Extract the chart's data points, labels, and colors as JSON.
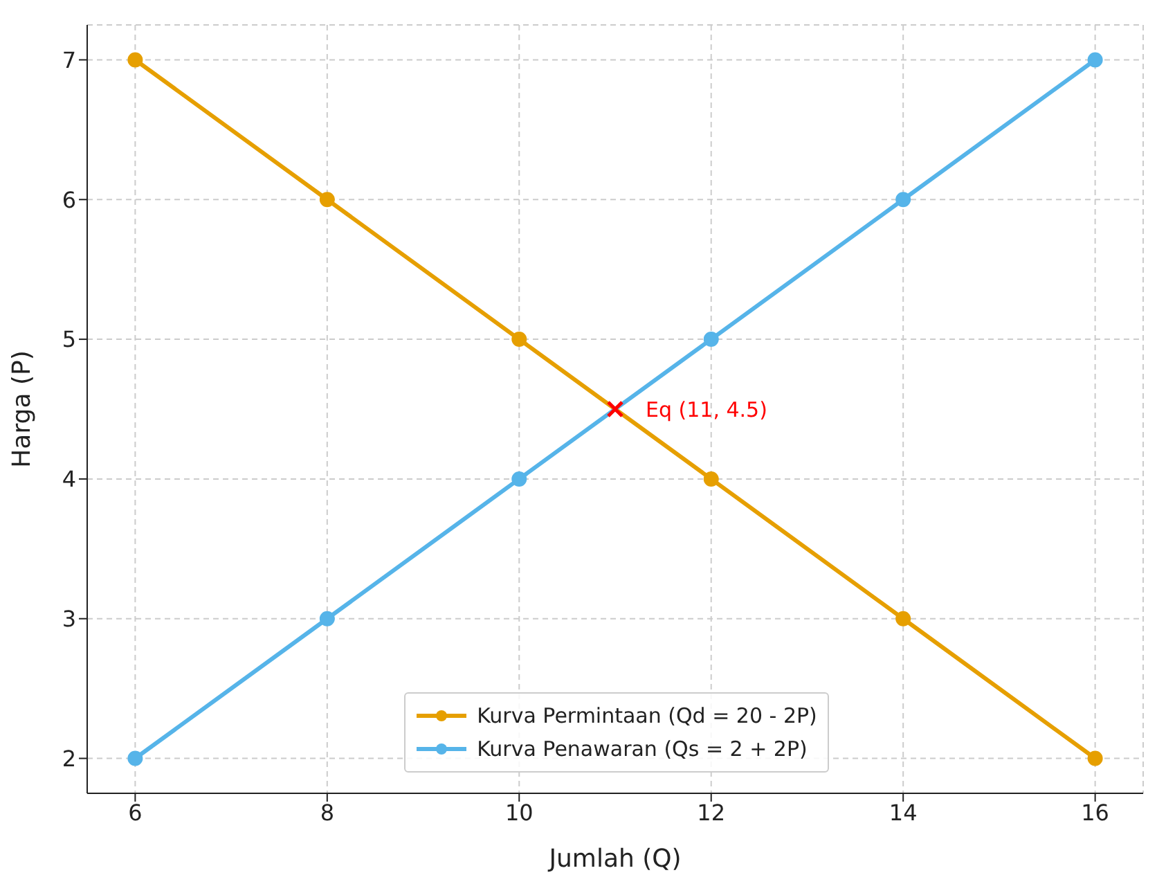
{
  "chart_data": {
    "type": "line",
    "xlabel": "Jumlah (Q)",
    "ylabel": "Harga (P)",
    "xlim": [
      5.5,
      16.5
    ],
    "xticks": [
      6,
      8,
      10,
      12,
      14,
      16
    ],
    "ylim": [
      1.75,
      7.25
    ],
    "yticks": [
      2,
      3,
      4,
      5,
      6,
      7
    ],
    "grid": true,
    "legend": "bottom",
    "marker": "circle",
    "line_style": "solid",
    "series": [
      {
        "name": "Kurva Permintaan (Qd = 20 - 2P)",
        "color": "#e69f00",
        "x": [
          6,
          8,
          10,
          12,
          14,
          16
        ],
        "values": [
          7,
          6,
          5,
          4,
          3,
          2
        ]
      },
      {
        "name": "Kurva Penawaran (Qs = 2 + 2P)",
        "color": "#56b4e9",
        "x": [
          6,
          8,
          10,
          12,
          14,
          16
        ],
        "values": [
          2,
          3,
          4,
          5,
          6,
          7
        ]
      },
      {
        "type": "scatter",
        "color": "#ff0000",
        "marker": "cross",
        "x": [
          11
        ],
        "values": [
          4.5
        ]
      }
    ],
    "annotations": [
      {
        "text": "Eq (11, 4.5)",
        "x": 11,
        "y": 4.5
      }
    ]
  }
}
